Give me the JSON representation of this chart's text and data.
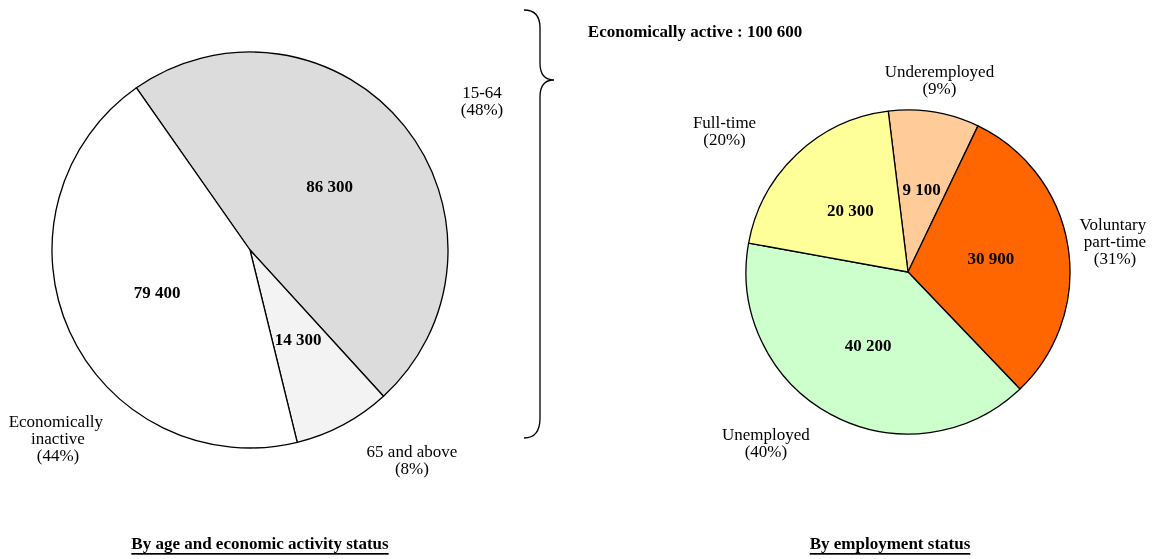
{
  "chart_data": [
    {
      "type": "pie",
      "title": "By age and economic activity status",
      "categories": [
        "15-64 (48%)",
        "65 and above (8%)",
        "Economically inactive (44%)"
      ],
      "values": [
        86300,
        14300,
        79400
      ],
      "value_labels": [
        "86 300",
        "14 300",
        "79 400"
      ],
      "colors": [
        "#dcdcdc",
        "#f3f3f3",
        "#ffffff"
      ]
    },
    {
      "type": "pie",
      "title": "By employment status",
      "annotations": [
        "Economically active : 100 600"
      ],
      "categories": [
        "Underemployed (9%)",
        "Voluntary part-time (31%)",
        "Unemployed (40%)",
        "Full-time (20%)"
      ],
      "values": [
        9100,
        30900,
        40200,
        20300
      ],
      "value_labels": [
        "9 100",
        "30 900",
        "40 200",
        "20 300"
      ],
      "colors": [
        "#ffcc99",
        "#ff6600",
        "#ccffcc",
        "#ffff99"
      ]
    }
  ]
}
